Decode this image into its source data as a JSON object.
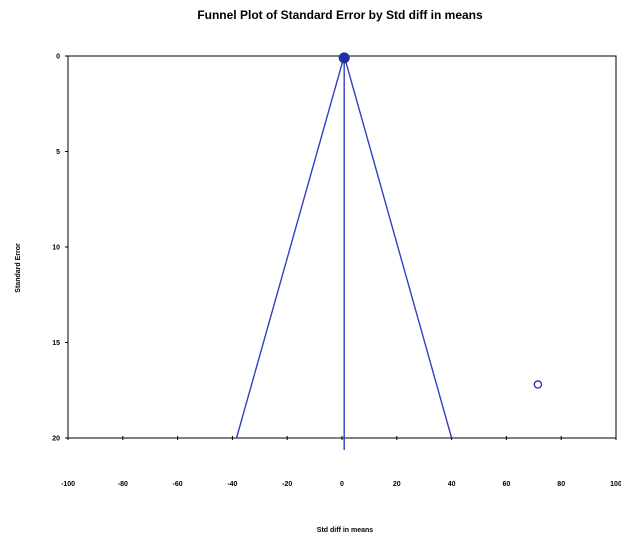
{
  "chart_data": {
    "type": "scatter",
    "title": "Funnel Plot of Standard Error by Std diff in means",
    "xlabel": "Std diff in means",
    "ylabel": "Standard Error",
    "xlim": [
      -100,
      100
    ],
    "ylim": [
      0,
      20
    ],
    "y_inverted": true,
    "x_ticks": [
      "-100",
      "-80",
      "-60",
      "-40",
      "-20",
      "0",
      "20",
      "40",
      "60",
      "80",
      "100"
    ],
    "y_ticks": [
      "0",
      "5",
      "10",
      "15",
      "20"
    ],
    "series": [
      {
        "marker": "hollow-circle",
        "points": [
          {
            "x": 71.5,
            "y": 17.2
          }
        ]
      },
      {
        "marker": "filled-circle",
        "points": [
          {
            "x": 0.8,
            "y": 0.1
          }
        ]
      }
    ],
    "funnel": {
      "center": 0.8,
      "left_at_bottom": -38.5,
      "right_at_bottom": 40.0
    },
    "grid": false,
    "colors": {
      "line": "#3040c0",
      "marker": "#2030a0",
      "axis": "#000000"
    }
  }
}
